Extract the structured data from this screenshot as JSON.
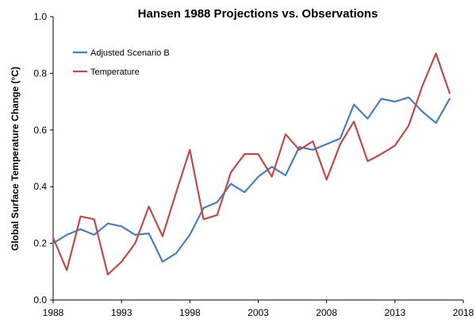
{
  "chart_data": {
    "type": "line",
    "title": "Hansen 1988 Projections vs. Observations",
    "xlabel": "",
    "ylabel": "Global Surface Temperature Change (°C)",
    "xlim": [
      1988,
      2018
    ],
    "ylim": [
      0.0,
      1.0
    ],
    "x_ticks": [
      "1988",
      "1993",
      "1998",
      "2003",
      "2008",
      "2013",
      "2018"
    ],
    "y_ticks": [
      "0.0",
      "0.2",
      "0.4",
      "0.6",
      "0.8",
      "1.0"
    ],
    "grid": false,
    "legend_position": "top-left",
    "x": [
      1988,
      1989,
      1990,
      1991,
      1992,
      1993,
      1994,
      1995,
      1996,
      1997,
      1998,
      1999,
      2000,
      2001,
      2002,
      2003,
      2004,
      2005,
      2006,
      2007,
      2008,
      2009,
      2010,
      2011,
      2012,
      2013,
      2014,
      2015,
      2016,
      2017
    ],
    "series": [
      {
        "name": "Adjusted Scenario B",
        "color": "#4a7ebb",
        "values": [
          0.2,
          0.23,
          0.25,
          0.23,
          0.27,
          0.26,
          0.23,
          0.235,
          0.135,
          0.165,
          0.23,
          0.325,
          0.345,
          0.41,
          0.38,
          0.435,
          0.47,
          0.44,
          0.54,
          0.53,
          0.55,
          0.57,
          0.69,
          0.64,
          0.71,
          0.7,
          0.715,
          0.665,
          0.625,
          0.71
        ]
      },
      {
        "name": "Temperature",
        "color": "#be4b48",
        "values": [
          0.22,
          0.105,
          0.295,
          0.285,
          0.09,
          0.135,
          0.2,
          0.33,
          0.225,
          0.38,
          0.53,
          0.285,
          0.3,
          0.45,
          0.515,
          0.515,
          0.435,
          0.585,
          0.53,
          0.56,
          0.425,
          0.55,
          0.63,
          0.49,
          0.515,
          0.545,
          0.615,
          0.755,
          0.87,
          0.73
        ]
      }
    ]
  }
}
